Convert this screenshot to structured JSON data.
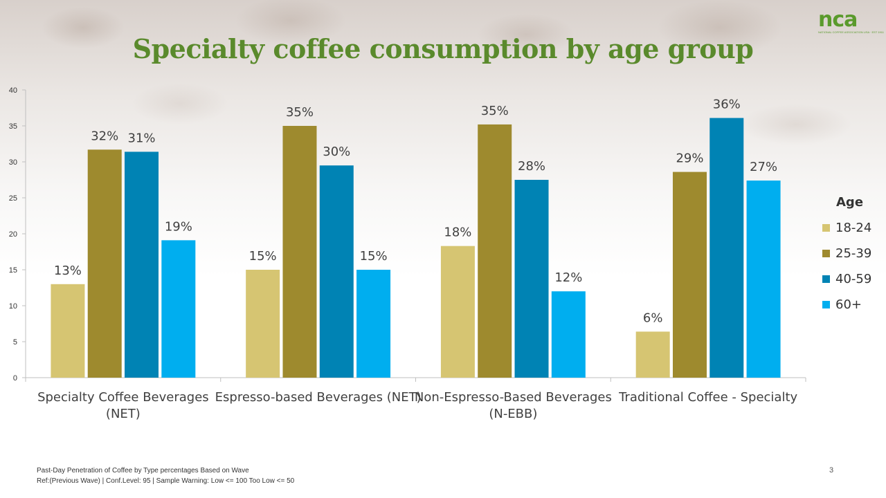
{
  "header": {
    "title": "Specialty coffee consumption by age group",
    "logo_text": "nca",
    "logo_sub": "NATIONAL COFFEE ASSOCIATION USA · EST 1911"
  },
  "colors": {
    "18-24": "#d6c572",
    "25-39": "#9e8a2e",
    "40-59": "#0083b4",
    "60+": "#00aeef",
    "title": "#5a8a2c"
  },
  "chart_data": {
    "type": "bar",
    "title": "Specialty coffee consumption by age group",
    "categories": [
      [
        "Specialty Coffee Beverages",
        "(NET)"
      ],
      [
        "Espresso-based Beverages (NET)"
      ],
      [
        "Non-Espresso-Based Beverages",
        "(N-EBB)"
      ],
      [
        "Traditional Coffee - Specialty"
      ]
    ],
    "series": [
      {
        "name": "18-24",
        "values": [
          13,
          15,
          18.3,
          6.4
        ],
        "labels": [
          "13%",
          "15%",
          "18%",
          "6%"
        ]
      },
      {
        "name": "25-39",
        "values": [
          31.7,
          35,
          35.2,
          28.6
        ],
        "labels": [
          "32%",
          "35%",
          "35%",
          "29%"
        ]
      },
      {
        "name": "40-59",
        "values": [
          31.4,
          29.5,
          27.5,
          36.1
        ],
        "labels": [
          "31%",
          "30%",
          "28%",
          "36%"
        ]
      },
      {
        "name": "60+",
        "values": [
          19.1,
          15,
          12,
          27.4
        ],
        "labels": [
          "19%",
          "15%",
          "12%",
          "27%"
        ]
      }
    ],
    "ylim": [
      0,
      40
    ],
    "yticks": [
      0,
      5,
      10,
      15,
      20,
      25,
      30,
      35,
      40
    ],
    "legend": {
      "title": "Age",
      "position": "right"
    },
    "grid": false
  },
  "footer": {
    "line1": "Past-Day Penetration of Coffee  by Type percentages Based on Wave",
    "line2": "Ref:(Previous Wave) | Conf.Level:  95 | Sample Warning: Low <= 100 Too Low <= 50"
  },
  "page_number": "3"
}
